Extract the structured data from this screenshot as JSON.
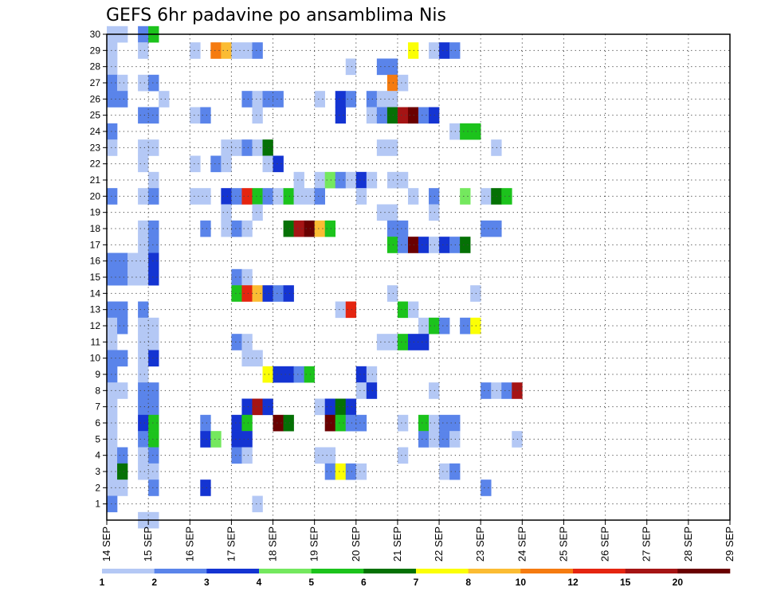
{
  "chart_data": {
    "type": "heatmap",
    "title": "GEFS 6hr padavine po ansamblima Nis",
    "y_members": [
      1,
      2,
      3,
      4,
      5,
      6,
      7,
      8,
      9,
      10,
      11,
      12,
      13,
      14,
      15,
      16,
      17,
      18,
      19,
      20,
      21,
      22,
      23,
      24,
      25,
      26,
      27,
      28,
      29,
      30
    ],
    "x_ticks": [
      "14 SEP",
      "15 SEP",
      "16 SEP",
      "17 SEP",
      "18 SEP",
      "19 SEP",
      "20 SEP",
      "21 SEP",
      "22 SEP",
      "23 SEP",
      "24 SEP",
      "25 SEP",
      "26 SEP",
      "27 SEP",
      "28 SEP",
      "29 SEP"
    ],
    "x_range_days": [
      14,
      29
    ],
    "steps_per_day": 4,
    "grid": true,
    "colorbar": {
      "levels": [
        "1",
        "2",
        "3",
        "4",
        "5",
        "6",
        "7",
        "8",
        "10",
        "12",
        "15",
        "20"
      ],
      "colors": [
        "#b4c8f5",
        "#5a84ea",
        "#1434d2",
        "#74e85e",
        "#1cc31c",
        "#057105",
        "#fbff05",
        "#fbbc33",
        "#f57b10",
        "#e52510",
        "#a51414",
        "#6a0000"
      ]
    },
    "cells": [
      {
        "m": 30,
        "bins": [
          [
            0,
            2,
            1
          ]
        ]
      },
      {
        "m": 30,
        "bins": [
          [
            3,
            1,
            2
          ],
          [
            4,
            1,
            5
          ]
        ]
      },
      {
        "m": 29,
        "bins": [
          [
            0,
            1,
            1
          ],
          [
            3,
            1,
            1
          ],
          [
            8,
            1,
            1
          ],
          [
            10,
            1,
            9
          ],
          [
            11,
            1,
            8
          ],
          [
            12,
            2,
            1
          ],
          [
            14,
            1,
            2
          ],
          [
            29,
            1,
            7
          ],
          [
            31,
            1,
            1
          ],
          [
            32,
            1,
            3
          ],
          [
            33,
            1,
            2
          ]
        ]
      },
      {
        "m": 28,
        "bins": [
          [
            0,
            1,
            1
          ],
          [
            23,
            1,
            1
          ],
          [
            26,
            2,
            2
          ]
        ]
      },
      {
        "m": 27,
        "bins": [
          [
            0,
            1,
            2
          ],
          [
            1,
            1,
            1
          ],
          [
            3,
            1,
            1
          ],
          [
            4,
            1,
            2
          ],
          [
            27,
            1,
            9
          ],
          [
            28,
            1,
            1
          ]
        ]
      },
      {
        "m": 26,
        "bins": [
          [
            0,
            2,
            2
          ],
          [
            5,
            1,
            1
          ],
          [
            13,
            1,
            2
          ],
          [
            14,
            1,
            1
          ],
          [
            15,
            2,
            2
          ],
          [
            20,
            1,
            1
          ],
          [
            22,
            1,
            3
          ],
          [
            23,
            1,
            2
          ],
          [
            25,
            1,
            2
          ],
          [
            26,
            1,
            1
          ],
          [
            27,
            1,
            1
          ]
        ]
      },
      {
        "m": 25,
        "bins": [
          [
            3,
            2,
            2
          ],
          [
            8,
            1,
            1
          ],
          [
            9,
            1,
            2
          ],
          [
            14,
            1,
            1
          ],
          [
            22,
            1,
            3
          ],
          [
            25,
            1,
            1
          ],
          [
            26,
            1,
            2
          ],
          [
            27,
            1,
            6
          ],
          [
            28,
            1,
            11
          ],
          [
            29,
            1,
            12
          ],
          [
            30,
            1,
            2
          ],
          [
            31,
            1,
            3
          ]
        ]
      },
      {
        "m": 24,
        "bins": [
          [
            0,
            1,
            2
          ],
          [
            33,
            1,
            1
          ],
          [
            34,
            2,
            5
          ]
        ]
      },
      {
        "m": 23,
        "bins": [
          [
            0,
            1,
            1
          ],
          [
            3,
            2,
            1
          ],
          [
            11,
            2,
            1
          ],
          [
            13,
            1,
            2
          ],
          [
            14,
            1,
            1
          ],
          [
            15,
            1,
            6
          ],
          [
            26,
            2,
            1
          ],
          [
            37,
            1,
            1
          ]
        ]
      },
      {
        "m": 22,
        "bins": [
          [
            3,
            1,
            1
          ],
          [
            8,
            1,
            1
          ],
          [
            10,
            1,
            2
          ],
          [
            11,
            1,
            1
          ],
          [
            15,
            1,
            1
          ],
          [
            16,
            1,
            3
          ]
        ]
      },
      {
        "m": 21,
        "bins": [
          [
            4,
            1,
            1
          ],
          [
            18,
            1,
            1
          ],
          [
            20,
            1,
            1
          ],
          [
            21,
            1,
            4
          ],
          [
            22,
            1,
            2
          ],
          [
            23,
            1,
            1
          ],
          [
            24,
            1,
            3
          ],
          [
            25,
            1,
            1
          ],
          [
            27,
            1,
            1
          ],
          [
            28,
            1,
            1
          ]
        ]
      },
      {
        "m": 20,
        "bins": [
          [
            0,
            1,
            2
          ],
          [
            3,
            1,
            1
          ],
          [
            4,
            1,
            2
          ],
          [
            8,
            2,
            1
          ],
          [
            11,
            1,
            3
          ],
          [
            12,
            1,
            2
          ],
          [
            13,
            1,
            10
          ],
          [
            14,
            1,
            5
          ],
          [
            15,
            1,
            2
          ],
          [
            16,
            1,
            1
          ],
          [
            17,
            1,
            5
          ],
          [
            18,
            2,
            1
          ],
          [
            20,
            1,
            2
          ],
          [
            24,
            1,
            1
          ],
          [
            29,
            1,
            1
          ],
          [
            31,
            1,
            2
          ],
          [
            34,
            1,
            4
          ],
          [
            36,
            1,
            1
          ],
          [
            37,
            1,
            6
          ],
          [
            38,
            1,
            5
          ]
        ]
      },
      {
        "m": 19,
        "bins": [
          [
            11,
            1,
            1
          ],
          [
            14,
            1,
            1
          ],
          [
            26,
            2,
            1
          ],
          [
            31,
            1,
            1
          ]
        ]
      },
      {
        "m": 18,
        "bins": [
          [
            3,
            1,
            1
          ],
          [
            4,
            1,
            2
          ],
          [
            9,
            1,
            2
          ],
          [
            11,
            1,
            1
          ],
          [
            12,
            1,
            2
          ],
          [
            13,
            1,
            1
          ],
          [
            17,
            1,
            6
          ],
          [
            18,
            1,
            11
          ],
          [
            19,
            1,
            12
          ],
          [
            20,
            1,
            8
          ],
          [
            21,
            1,
            5
          ],
          [
            27,
            2,
            2
          ],
          [
            36,
            2,
            2
          ]
        ]
      },
      {
        "m": 17,
        "bins": [
          [
            3,
            1,
            1
          ],
          [
            4,
            1,
            2
          ],
          [
            27,
            1,
            5
          ],
          [
            28,
            1,
            2
          ],
          [
            29,
            1,
            12
          ],
          [
            30,
            1,
            3
          ],
          [
            31,
            1,
            1
          ],
          [
            32,
            1,
            3
          ],
          [
            33,
            1,
            2
          ],
          [
            34,
            1,
            6
          ]
        ]
      },
      {
        "m": 16,
        "bins": [
          [
            0,
            2,
            2
          ],
          [
            2,
            2,
            1
          ],
          [
            4,
            1,
            3
          ]
        ]
      },
      {
        "m": 15,
        "bins": [
          [
            0,
            2,
            2
          ],
          [
            2,
            2,
            1
          ],
          [
            4,
            1,
            3
          ],
          [
            12,
            1,
            2
          ],
          [
            13,
            1,
            1
          ]
        ]
      },
      {
        "m": 14,
        "bins": [
          [
            12,
            1,
            5
          ],
          [
            13,
            1,
            10
          ],
          [
            14,
            1,
            8
          ],
          [
            15,
            1,
            3
          ],
          [
            16,
            1,
            2
          ],
          [
            17,
            1,
            3
          ],
          [
            27,
            1,
            1
          ],
          [
            35,
            1,
            1
          ]
        ]
      },
      {
        "m": 13,
        "bins": [
          [
            0,
            2,
            2
          ],
          [
            3,
            1,
            2
          ],
          [
            22,
            1,
            1
          ],
          [
            23,
            1,
            10
          ],
          [
            28,
            1,
            5
          ],
          [
            29,
            1,
            1
          ]
        ]
      },
      {
        "m": 12,
        "bins": [
          [
            0,
            1,
            1
          ],
          [
            1,
            1,
            2
          ],
          [
            3,
            2,
            1
          ],
          [
            30,
            2,
            1
          ],
          [
            31,
            1,
            5
          ],
          [
            32,
            1,
            2
          ],
          [
            34,
            1,
            2
          ],
          [
            35,
            1,
            7
          ]
        ]
      },
      {
        "m": 11,
        "bins": [
          [
            0,
            1,
            1
          ],
          [
            3,
            2,
            1
          ],
          [
            12,
            1,
            2
          ],
          [
            13,
            1,
            1
          ],
          [
            26,
            2,
            1
          ],
          [
            28,
            1,
            5
          ],
          [
            29,
            2,
            3
          ]
        ]
      },
      {
        "m": 10,
        "bins": [
          [
            0,
            2,
            2
          ],
          [
            3,
            1,
            1
          ],
          [
            4,
            1,
            3
          ],
          [
            13,
            2,
            1
          ]
        ]
      },
      {
        "m": 9,
        "bins": [
          [
            0,
            1,
            2
          ],
          [
            3,
            1,
            1
          ],
          [
            15,
            1,
            7
          ],
          [
            16,
            2,
            3
          ],
          [
            18,
            1,
            2
          ],
          [
            19,
            1,
            5
          ],
          [
            24,
            1,
            3
          ],
          [
            25,
            1,
            1
          ]
        ]
      },
      {
        "m": 8,
        "bins": [
          [
            0,
            2,
            1
          ],
          [
            3,
            2,
            2
          ],
          [
            24,
            1,
            1
          ],
          [
            25,
            1,
            3
          ],
          [
            31,
            1,
            1
          ],
          [
            36,
            1,
            2
          ],
          [
            37,
            1,
            1
          ],
          [
            38,
            1,
            2
          ],
          [
            39,
            1,
            11
          ]
        ]
      },
      {
        "m": 7,
        "bins": [
          [
            0,
            1,
            1
          ],
          [
            3,
            2,
            2
          ],
          [
            13,
            1,
            3
          ],
          [
            14,
            1,
            11
          ],
          [
            15,
            1,
            3
          ],
          [
            20,
            1,
            1
          ],
          [
            21,
            1,
            3
          ],
          [
            22,
            1,
            6
          ],
          [
            23,
            1,
            3
          ]
        ]
      },
      {
        "m": 6,
        "bins": [
          [
            0,
            1,
            1
          ],
          [
            3,
            1,
            3
          ],
          [
            4,
            1,
            5
          ],
          [
            9,
            1,
            2
          ],
          [
            12,
            1,
            3
          ],
          [
            13,
            1,
            5
          ],
          [
            16,
            1,
            12
          ],
          [
            17,
            1,
            6
          ],
          [
            21,
            1,
            12
          ],
          [
            22,
            1,
            5
          ],
          [
            23,
            2,
            2
          ],
          [
            28,
            1,
            1
          ],
          [
            30,
            1,
            5
          ],
          [
            31,
            1,
            1
          ],
          [
            32,
            2,
            2
          ]
        ]
      },
      {
        "m": 5,
        "bins": [
          [
            0,
            1,
            1
          ],
          [
            3,
            1,
            2
          ],
          [
            4,
            1,
            5
          ],
          [
            9,
            1,
            3
          ],
          [
            10,
            1,
            4
          ],
          [
            12,
            2,
            3
          ],
          [
            30,
            1,
            2
          ],
          [
            31,
            1,
            1
          ],
          [
            32,
            1,
            2
          ],
          [
            33,
            1,
            1
          ],
          [
            39,
            1,
            1
          ]
        ]
      },
      {
        "m": 4,
        "bins": [
          [
            0,
            1,
            1
          ],
          [
            1,
            1,
            2
          ],
          [
            3,
            1,
            1
          ],
          [
            4,
            1,
            2
          ],
          [
            12,
            1,
            2
          ],
          [
            13,
            1,
            1
          ],
          [
            20,
            2,
            1
          ],
          [
            28,
            1,
            1
          ]
        ]
      },
      {
        "m": 3,
        "bins": [
          [
            0,
            1,
            1
          ],
          [
            1,
            1,
            6
          ],
          [
            3,
            2,
            1
          ],
          [
            21,
            1,
            2
          ],
          [
            22,
            1,
            7
          ],
          [
            23,
            1,
            2
          ],
          [
            24,
            1,
            1
          ],
          [
            32,
            1,
            1
          ],
          [
            33,
            1,
            2
          ]
        ]
      },
      {
        "m": 2,
        "bins": [
          [
            0,
            2,
            1
          ],
          [
            4,
            1,
            2
          ],
          [
            9,
            1,
            3
          ],
          [
            36,
            1,
            2
          ]
        ]
      },
      {
        "m": 1,
        "bins": [
          [
            0,
            1,
            2
          ],
          [
            14,
            1,
            1
          ]
        ]
      },
      {
        "m": 0,
        "bins": [
          [
            3,
            2,
            1
          ]
        ]
      }
    ]
  }
}
